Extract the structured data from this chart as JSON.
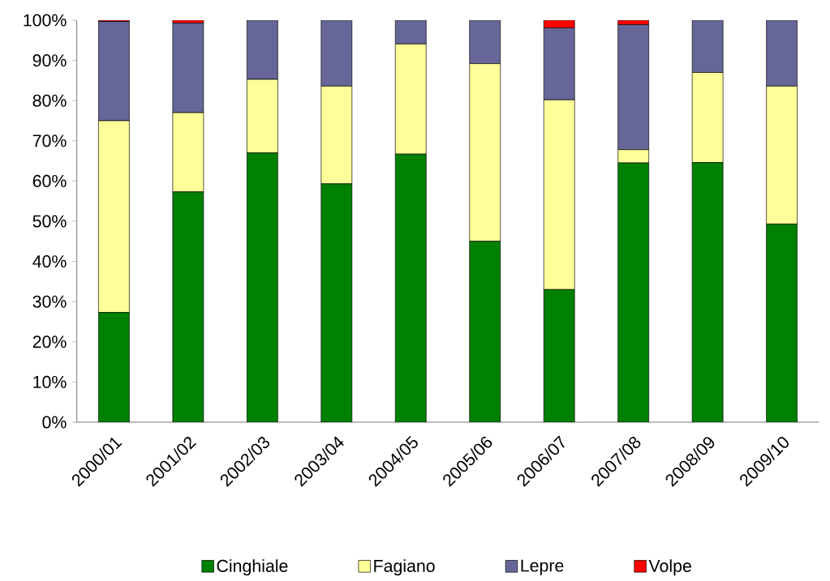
{
  "chart_data": {
    "type": "bar",
    "stacked": true,
    "legend": "bottom",
    "categories": [
      "2000/01",
      "2001/02",
      "2002/03",
      "2003/04",
      "2004/05",
      "2005/06",
      "2006/07",
      "2007/08",
      "2008/09",
      "2009/10"
    ],
    "series": [
      {
        "name": "Cinghiale",
        "color": "#008000",
        "values": [
          27.3,
          57.3,
          67,
          59.3,
          66.7,
          45,
          33,
          64.5,
          64.6,
          49.3
        ]
      },
      {
        "name": "Fagiano",
        "color": "#ffff99",
        "values": [
          47.7,
          19.7,
          18.3,
          24.3,
          27.4,
          44.2,
          47.2,
          3.3,
          22.4,
          34.3
        ]
      },
      {
        "name": "Lepre",
        "color": "#666699",
        "values": [
          24.7,
          22.3,
          14.7,
          16.4,
          5.9,
          10.8,
          17.9,
          31.1,
          13,
          16.4
        ]
      },
      {
        "name": "Volpe",
        "color": "#ff0000",
        "values": [
          0.3,
          0.7,
          0,
          0,
          0,
          0,
          1.9,
          1.1,
          0,
          0
        ]
      }
    ],
    "ylim": [
      0,
      100
    ],
    "yticks": [
      {
        "value": 0,
        "label": "0%"
      },
      {
        "value": 10,
        "label": "10%"
      },
      {
        "value": 20,
        "label": "20%"
      },
      {
        "value": 30,
        "label": "30%"
      },
      {
        "value": 40,
        "label": "40%"
      },
      {
        "value": 50,
        "label": "50%"
      },
      {
        "value": 60,
        "label": "60%"
      },
      {
        "value": 70,
        "label": "70%"
      },
      {
        "value": 80,
        "label": "80%"
      },
      {
        "value": 90,
        "label": "90%"
      },
      {
        "value": 100,
        "label": "100%"
      }
    ]
  }
}
